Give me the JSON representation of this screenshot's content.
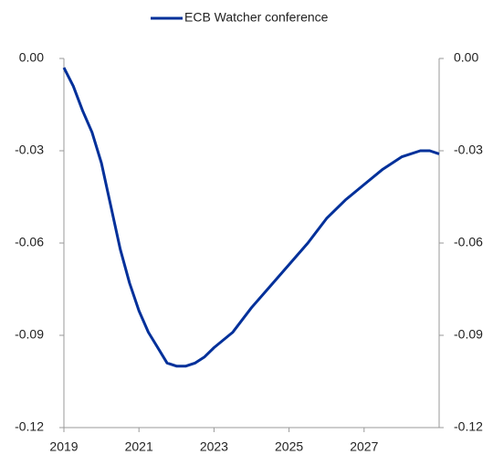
{
  "chart_data": {
    "type": "line",
    "x": [
      2019,
      2019.25,
      2019.5,
      2019.75,
      2020,
      2020.25,
      2020.5,
      2020.75,
      2021,
      2021.25,
      2021.5,
      2021.75,
      2022,
      2022.25,
      2022.5,
      2022.75,
      2023,
      2023.5,
      2024,
      2024.5,
      2025,
      2025.5,
      2026,
      2026.5,
      2027,
      2027.5,
      2028,
      2028.5,
      2028.75,
      2029
    ],
    "series": [
      {
        "name": "ECB Watcher conference",
        "color": "#00309a",
        "values": [
          -0.003,
          -0.009,
          -0.017,
          -0.024,
          -0.034,
          -0.048,
          -0.062,
          -0.073,
          -0.082,
          -0.089,
          -0.094,
          -0.099,
          -0.1,
          -0.1,
          -0.099,
          -0.097,
          -0.094,
          -0.089,
          -0.081,
          -0.074,
          -0.067,
          -0.06,
          -0.052,
          -0.046,
          -0.041,
          -0.036,
          -0.032,
          -0.03,
          -0.03,
          -0.031
        ]
      }
    ],
    "xlim": [
      2019,
      2029
    ],
    "xticks": [
      2019,
      2021,
      2023,
      2025,
      2027
    ],
    "ylim": [
      -0.12,
      0
    ],
    "yticks": [
      {
        "value": 0,
        "label": "0.00"
      },
      -0.03,
      -0.06,
      -0.09,
      -0.12
    ],
    "y2lim": [
      -0.12,
      0
    ],
    "y2ticks": [
      {
        "value": 0,
        "label": "0.00"
      },
      -0.03,
      -0.06,
      -0.09,
      -0.12
    ],
    "legend": "top"
  }
}
